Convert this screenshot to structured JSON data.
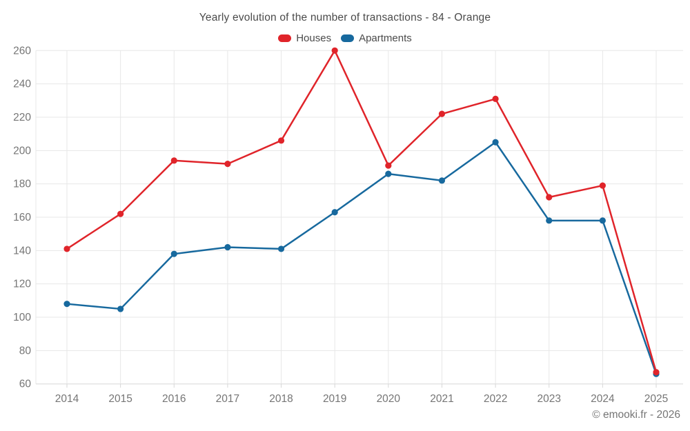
{
  "title": "Yearly evolution of the number of transactions - 84 - Orange",
  "legend": [
    {
      "label": "Houses",
      "color": "#e0242a"
    },
    {
      "label": "Apartments",
      "color": "#17699e"
    }
  ],
  "footer": "© emooki.fr - 2026",
  "colors": {
    "houses": "#e0242a",
    "apartments": "#17699e",
    "grid": "#e7e7e7",
    "axis_text": "#757575",
    "title_text": "#4a4a4a"
  },
  "chart_data": {
    "type": "line",
    "title": "Yearly evolution of the number of transactions - 84 - Orange",
    "x": [
      2014,
      2015,
      2016,
      2017,
      2018,
      2019,
      2020,
      2021,
      2022,
      2023,
      2024,
      2025
    ],
    "series": [
      {
        "name": "Houses",
        "color": "#e0242a",
        "values": [
          141,
          162,
          194,
          192,
          206,
          260,
          191,
          222,
          231,
          172,
          179,
          67
        ]
      },
      {
        "name": "Apartments",
        "color": "#17699e",
        "values": [
          108,
          105,
          138,
          142,
          141,
          163,
          186,
          182,
          205,
          158,
          158,
          66
        ]
      }
    ],
    "ylim": [
      60,
      260
    ],
    "yticks": [
      60,
      80,
      100,
      120,
      140,
      160,
      180,
      200,
      220,
      240,
      260
    ],
    "xlabel": "",
    "ylabel": "",
    "grid": true,
    "legend_position": "top",
    "marker": "circle"
  }
}
